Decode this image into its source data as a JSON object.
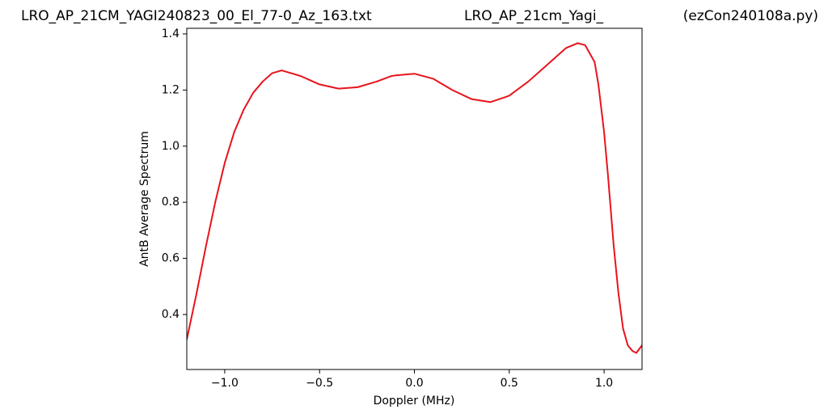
{
  "chart_data": {
    "type": "line",
    "title": "LRO_AP_21CM_YAGI240823_00_El_77-0_Az_163.txt",
    "subtitle": "LRO_AP_21cm_Yagi_",
    "annotation": "(ezCon240108a.py)",
    "xlabel": "Doppler (MHz)",
    "ylabel": "AntB Average Spectrum",
    "x": [
      -1.2,
      -1.15,
      -1.1,
      -1.05,
      -1.0,
      -0.95,
      -0.9,
      -0.85,
      -0.8,
      -0.75,
      -0.7,
      -0.6,
      -0.5,
      -0.4,
      -0.3,
      -0.2,
      -0.12,
      -0.1,
      0.0,
      0.1,
      0.2,
      0.3,
      0.4,
      0.48,
      0.5,
      0.6,
      0.7,
      0.8,
      0.86,
      0.9,
      0.95,
      0.97,
      1.0,
      1.02,
      1.05,
      1.075,
      1.1,
      1.125,
      1.15,
      1.17,
      1.2
    ],
    "series": [
      {
        "name": "AntB",
        "color": "#e8141b",
        "values": [
          0.311,
          0.47,
          0.64,
          0.8,
          0.94,
          1.05,
          1.13,
          1.19,
          1.23,
          1.26,
          1.27,
          1.25,
          1.22,
          1.205,
          1.21,
          1.23,
          1.25,
          1.252,
          1.258,
          1.24,
          1.2,
          1.168,
          1.157,
          1.175,
          1.18,
          1.23,
          1.29,
          1.35,
          1.367,
          1.36,
          1.3,
          1.22,
          1.05,
          0.9,
          0.65,
          0.48,
          0.35,
          0.29,
          0.27,
          0.263,
          0.29
        ]
      }
    ],
    "xlim": [
      -1.2,
      1.2
    ],
    "ylim": [
      0.204,
      1.42
    ],
    "xticks": [
      {
        "value": -1.0,
        "label": "−1.0"
      },
      {
        "value": -0.5,
        "label": "−0.5"
      },
      {
        "value": 0,
        "label": "0.0"
      },
      0.5,
      {
        "value": 1,
        "label": "1.0"
      }
    ],
    "yticks": [
      0.4,
      0.6,
      0.8,
      {
        "value": 1,
        "label": "1.0"
      },
      1.2,
      1.4
    ],
    "grid": false
  }
}
